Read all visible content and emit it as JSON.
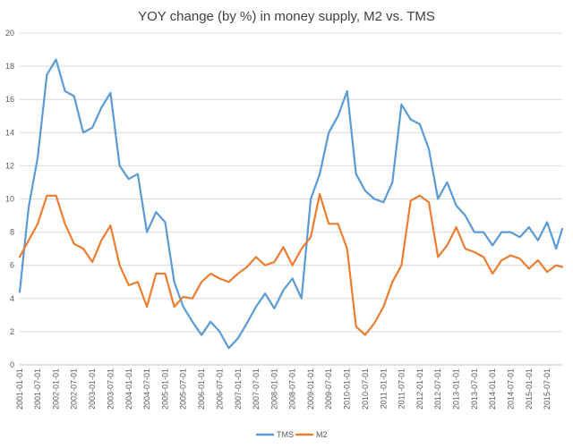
{
  "chart_data": {
    "type": "line",
    "title": "YOY change (by %) in money supply, M2 vs. TMS",
    "xlabel": "",
    "ylabel": "",
    "ylim": [
      0,
      20
    ],
    "yticks": [
      0,
      2,
      4,
      6,
      8,
      10,
      12,
      14,
      16,
      18,
      20
    ],
    "grid": true,
    "legend_position": "bottom",
    "x_tick_labels": [
      "2001-01-01",
      "2001-07-01",
      "2002-01-01",
      "2002-07-01",
      "2003-01-01",
      "2003-07-01",
      "2004-01-01",
      "2004-07-01",
      "2005-01-01",
      "2005-07-01",
      "2006-01-01",
      "2006-07-01",
      "2007-01-01",
      "2007-07-01",
      "2008-01-01",
      "2008-07-01",
      "2009-01-01",
      "2009-07-01",
      "2010-01-01",
      "2010-07-01",
      "2011-01-01",
      "2011-07-01",
      "2012-01-01",
      "2012-07-01",
      "2013-01-01",
      "2013-07-01",
      "2014-01-01",
      "2014-07-01",
      "2015-01-01",
      "2015-07-01"
    ],
    "x": [
      "2001-01-01",
      "2001-04-01",
      "2001-07-01",
      "2001-10-01",
      "2002-01-01",
      "2002-04-01",
      "2002-07-01",
      "2002-10-01",
      "2003-01-01",
      "2003-04-01",
      "2003-07-01",
      "2003-10-01",
      "2004-01-01",
      "2004-04-01",
      "2004-07-01",
      "2004-10-01",
      "2005-01-01",
      "2005-04-01",
      "2005-07-01",
      "2005-10-01",
      "2006-01-01",
      "2006-04-01",
      "2006-07-01",
      "2006-10-01",
      "2007-01-01",
      "2007-04-01",
      "2007-07-01",
      "2007-10-01",
      "2008-01-01",
      "2008-04-01",
      "2008-07-01",
      "2008-10-01",
      "2009-01-01",
      "2009-04-01",
      "2009-07-01",
      "2009-10-01",
      "2010-01-01",
      "2010-04-01",
      "2010-07-01",
      "2010-10-01",
      "2011-01-01",
      "2011-04-01",
      "2011-07-01",
      "2011-10-01",
      "2012-01-01",
      "2012-04-01",
      "2012-07-01",
      "2012-10-01",
      "2013-01-01",
      "2013-04-01",
      "2013-07-01",
      "2013-10-01",
      "2014-01-01",
      "2014-04-01",
      "2014-07-01",
      "2014-10-01",
      "2015-01-01",
      "2015-04-01",
      "2015-07-01",
      "2015-10-01",
      "2015-12-01"
    ],
    "series": [
      {
        "name": "TMS",
        "color": "#5b9bd5",
        "values": [
          4.4,
          9.5,
          12.5,
          17.5,
          18.4,
          16.5,
          16.2,
          14.0,
          14.3,
          15.5,
          16.4,
          12.0,
          11.2,
          11.5,
          8.0,
          9.2,
          8.6,
          5.0,
          3.5,
          2.6,
          1.8,
          2.6,
          2.0,
          1.0,
          1.6,
          2.5,
          3.5,
          4.3,
          3.4,
          4.5,
          5.2,
          4.0,
          10.0,
          11.5,
          14.0,
          15.0,
          16.5,
          11.5,
          10.5,
          10.0,
          9.8,
          11.0,
          15.7,
          14.8,
          14.5,
          13.0,
          10.0,
          11.0,
          9.6,
          9.0,
          8.0,
          8.0,
          7.2,
          8.0,
          8.0,
          7.7,
          8.3,
          7.5,
          8.6,
          7.0,
          8.2
        ]
      },
      {
        "name": "M2",
        "color": "#ed7d31",
        "values": [
          6.5,
          7.5,
          8.5,
          10.2,
          10.2,
          8.5,
          7.3,
          7.0,
          6.2,
          7.5,
          8.4,
          6.0,
          4.8,
          5.0,
          3.5,
          5.5,
          5.5,
          3.5,
          4.1,
          4.0,
          5.0,
          5.5,
          5.2,
          5.0,
          5.5,
          5.9,
          6.5,
          6.0,
          6.2,
          7.1,
          6.0,
          7.0,
          7.7,
          10.3,
          8.5,
          8.5,
          7.0,
          2.3,
          1.8,
          2.5,
          3.5,
          5.0,
          6.0,
          9.9,
          10.2,
          9.8,
          6.5,
          7.2,
          8.3,
          7.0,
          6.8,
          6.5,
          5.5,
          6.3,
          6.6,
          6.4,
          5.8,
          6.3,
          5.6,
          6.0,
          5.9
        ]
      }
    ]
  }
}
